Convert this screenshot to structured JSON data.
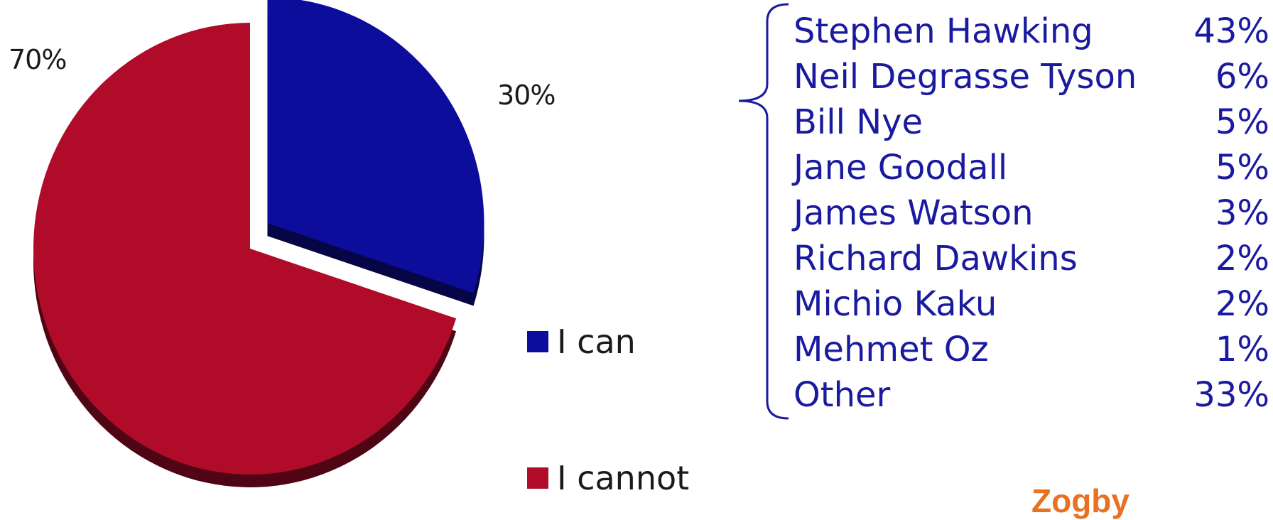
{
  "chart_data": {
    "type": "pie",
    "title": "",
    "slices": [
      {
        "label": "I can",
        "value": 30,
        "display": "30%",
        "color": "#0d0d9c",
        "exploded": true
      },
      {
        "label": "I cannot",
        "value": 70,
        "display": "70%",
        "color": "#b00c2a",
        "exploded": false
      }
    ],
    "legend": [
      "I can",
      "I cannot"
    ],
    "legend_placement": "right"
  },
  "breakdown": {
    "items": [
      {
        "name": "Stephen Hawking",
        "pct": "43%"
      },
      {
        "name": "Neil Degrasse Tyson",
        "pct": "6%"
      },
      {
        "name": "Bill Nye",
        "pct": "5%"
      },
      {
        "name": "Jane Goodall",
        "pct": "5%"
      },
      {
        "name": "James Watson",
        "pct": "3%"
      },
      {
        "name": "Richard Dawkins",
        "pct": "2%"
      },
      {
        "name": "Michio Kaku",
        "pct": "2%"
      },
      {
        "name": "Mehmet Oz",
        "pct": "1%"
      },
      {
        "name": "Other",
        "pct": "33%"
      }
    ]
  },
  "logo_text": "Zogby",
  "colors": {
    "text_blue": "#1a1aa0",
    "logo_orange": "#e87222"
  }
}
